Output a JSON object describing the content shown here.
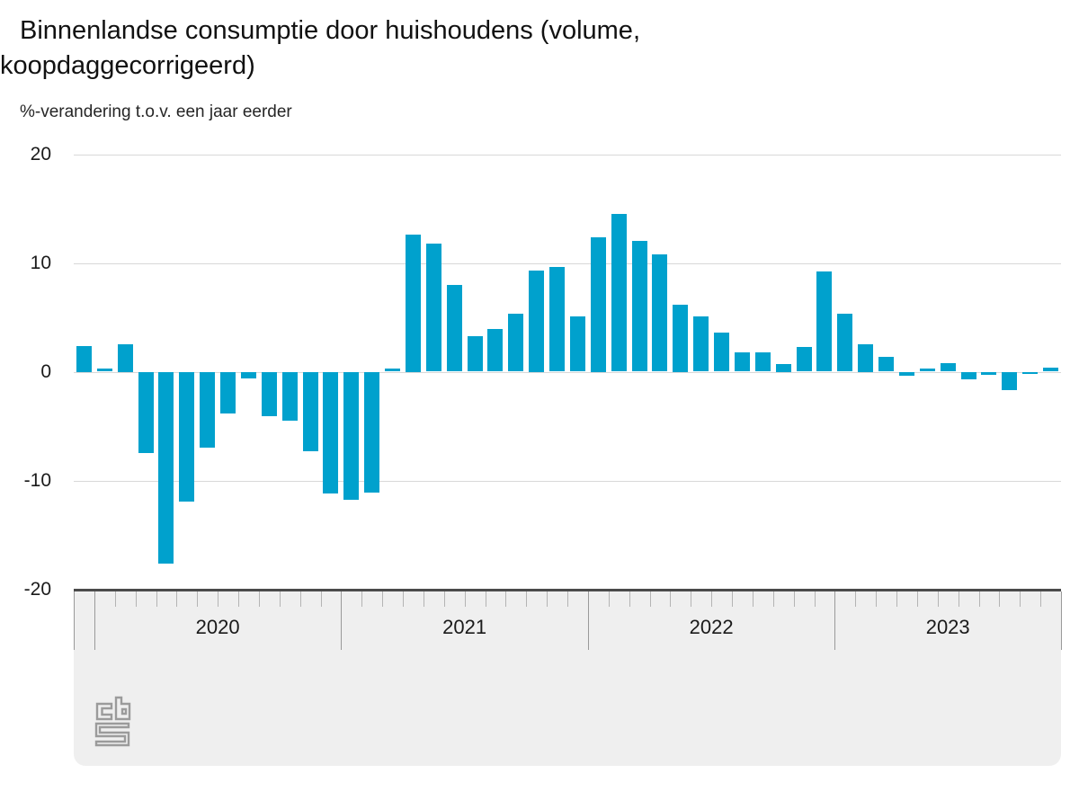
{
  "title": {
    "line1": "Binnenlandse consumptie door huishoudens (volume,",
    "line2": "koopdaggecorrigeerd)"
  },
  "subtitle": "%-verandering t.o.v. een jaar eerder",
  "logo_name": "cbs-logo",
  "colors": {
    "bar": "#00a1cd",
    "grid": "#d8d8d8",
    "panel_bg": "#efefef",
    "panel_border": "#4b4b4b",
    "tick_minor": "#b4b4b4",
    "tick_major": "#9a9a9a",
    "text": "#1a1a1a",
    "logo": "#9b9b9b"
  },
  "chart_data": {
    "type": "bar",
    "title": "Binnenlandse consumptie door huishoudens (volume, koopdaggecorrigeerd)",
    "ylabel": "%-verandering t.o.v. een jaar eerder",
    "xlabel": "",
    "ylim": [
      -20,
      20
    ],
    "yticks": [
      20,
      10,
      0,
      -10,
      -20
    ],
    "grid": true,
    "legend": "none",
    "year_labels": [
      "2020",
      "2021",
      "2022",
      "2023"
    ],
    "series": [
      {
        "name": "Binnenlandse consumptie door huishoudens",
        "months": [
          "2019-12",
          "2020-01",
          "2020-02",
          "2020-03",
          "2020-04",
          "2020-05",
          "2020-06",
          "2020-07",
          "2020-08",
          "2020-09",
          "2020-10",
          "2020-11",
          "2020-12",
          "2021-01",
          "2021-02",
          "2021-03",
          "2021-04",
          "2021-05",
          "2021-06",
          "2021-07",
          "2021-08",
          "2021-09",
          "2021-10",
          "2021-11",
          "2021-12",
          "2022-01",
          "2022-02",
          "2022-03",
          "2022-04",
          "2022-05",
          "2022-06",
          "2022-07",
          "2022-08",
          "2022-09",
          "2022-10",
          "2022-11",
          "2022-12",
          "2023-01",
          "2023-02",
          "2023-03",
          "2023-04",
          "2023-05",
          "2023-06",
          "2023-07",
          "2023-08",
          "2023-09",
          "2023-10",
          "2023-11"
        ],
        "values": [
          2.4,
          0.3,
          2.5,
          -7.5,
          -17.6,
          -11.9,
          -7.0,
          -3.8,
          -0.6,
          -4.1,
          -4.5,
          -7.3,
          -11.2,
          -11.8,
          -11.1,
          0.3,
          12.6,
          11.8,
          8.0,
          3.3,
          3.9,
          5.3,
          9.3,
          9.6,
          5.1,
          12.4,
          14.5,
          12.0,
          10.8,
          6.2,
          5.1,
          3.6,
          1.8,
          1.8,
          0.7,
          2.3,
          9.2,
          5.3,
          2.5,
          1.4,
          -0.4,
          0.3,
          0.8,
          -0.7,
          -0.3,
          -1.7,
          -0.2,
          0.4
        ]
      }
    ]
  }
}
